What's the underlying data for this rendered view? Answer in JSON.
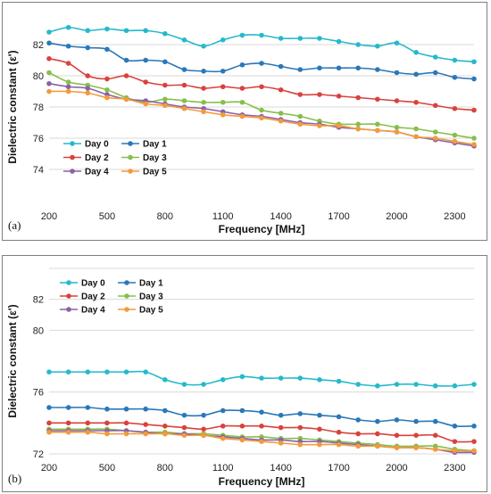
{
  "colors": {
    "Day 0": "#25b9cc",
    "Day 1": "#2a78b8",
    "Day 2": "#d9423c",
    "Day 3": "#86bf4a",
    "Day 4": "#8a61a8",
    "Day 5": "#f39a3a"
  },
  "chart_data": [
    {
      "type": "line",
      "panel_label": "(a)",
      "xlabel": "Frequency [MHz]",
      "ylabel": "Dielectric constant (ε')",
      "xlim": [
        200,
        2400
      ],
      "ylim": [
        72,
        84
      ],
      "xticks": [
        200,
        500,
        800,
        1100,
        1400,
        1700,
        2000,
        2300
      ],
      "yticks": [
        74,
        76,
        78,
        80,
        82
      ],
      "grid": "horizontal",
      "legend_position": "bottom-left",
      "x": [
        200,
        300,
        400,
        500,
        600,
        700,
        800,
        900,
        1000,
        1100,
        1200,
        1300,
        1400,
        1500,
        1600,
        1700,
        1800,
        1900,
        2000,
        2100,
        2200,
        2300,
        2400
      ],
      "series": [
        {
          "name": "Day 0",
          "values": [
            82.8,
            83.1,
            82.9,
            83.0,
            82.9,
            82.9,
            82.7,
            82.3,
            81.9,
            82.3,
            82.6,
            82.6,
            82.4,
            82.4,
            82.4,
            82.2,
            82.0,
            81.9,
            82.1,
            81.5,
            81.2,
            81.0,
            80.9
          ]
        },
        {
          "name": "Day 1",
          "values": [
            82.1,
            81.9,
            81.8,
            81.7,
            81.0,
            81.0,
            80.9,
            80.4,
            80.3,
            80.3,
            80.7,
            80.8,
            80.6,
            80.4,
            80.5,
            80.5,
            80.5,
            80.4,
            80.2,
            80.1,
            80.2,
            79.9,
            79.8
          ]
        },
        {
          "name": "Day 2",
          "values": [
            81.1,
            80.8,
            80.0,
            79.8,
            80.0,
            79.6,
            79.4,
            79.4,
            79.2,
            79.3,
            79.2,
            79.3,
            79.1,
            78.8,
            78.8,
            78.7,
            78.6,
            78.5,
            78.4,
            78.3,
            78.1,
            77.9,
            77.8
          ]
        },
        {
          "name": "Day 3",
          "values": [
            80.2,
            79.6,
            79.4,
            79.1,
            78.6,
            78.3,
            78.5,
            78.4,
            78.3,
            78.3,
            78.3,
            77.8,
            77.6,
            77.4,
            77.1,
            76.9,
            76.9,
            76.9,
            76.7,
            76.6,
            76.4,
            76.2,
            76.0
          ]
        },
        {
          "name": "Day 4",
          "values": [
            79.5,
            79.3,
            79.2,
            78.8,
            78.5,
            78.4,
            78.2,
            78.0,
            77.9,
            77.7,
            77.5,
            77.4,
            77.2,
            77.0,
            76.9,
            76.7,
            76.6,
            76.5,
            76.4,
            76.1,
            75.9,
            75.7,
            75.5
          ]
        },
        {
          "name": "Day 5",
          "values": [
            79.0,
            79.0,
            78.9,
            78.6,
            78.5,
            78.2,
            78.1,
            77.9,
            77.7,
            77.5,
            77.4,
            77.3,
            77.1,
            76.9,
            76.8,
            76.8,
            76.6,
            76.5,
            76.4,
            76.1,
            76.0,
            75.8,
            75.6
          ]
        }
      ]
    },
    {
      "type": "line",
      "panel_label": "(b)",
      "xlabel": "Frequency [MHz]",
      "ylabel": "Dielectric constant (ε')",
      "xlim": [
        200,
        2400
      ],
      "ylim": [
        72,
        84
      ],
      "xticks": [
        200,
        500,
        800,
        1100,
        1400,
        1700,
        2000,
        2300
      ],
      "yticks": [
        72,
        76,
        80,
        82,
        84
      ],
      "ytick_labels": [
        "72",
        "76",
        "80",
        "82",
        ""
      ],
      "grid": "horizontal",
      "legend_position": "top-left",
      "x": [
        200,
        300,
        400,
        500,
        600,
        700,
        800,
        900,
        1000,
        1100,
        1200,
        1300,
        1400,
        1500,
        1600,
        1700,
        1800,
        1900,
        2000,
        2100,
        2200,
        2300,
        2400
      ],
      "series": [
        {
          "name": "Day 0",
          "values": [
            77.3,
            77.3,
            77.3,
            77.3,
            77.3,
            77.3,
            76.8,
            76.5,
            76.5,
            76.8,
            77.0,
            76.9,
            76.9,
            76.9,
            76.8,
            76.7,
            76.5,
            76.4,
            76.5,
            76.5,
            76.4,
            76.4,
            76.5
          ]
        },
        {
          "name": "Day 1",
          "values": [
            75.0,
            75.0,
            75.0,
            74.9,
            74.9,
            74.9,
            74.8,
            74.5,
            74.5,
            74.8,
            74.8,
            74.7,
            74.5,
            74.6,
            74.5,
            74.4,
            74.2,
            74.1,
            74.2,
            74.1,
            74.1,
            73.8,
            73.8
          ]
        },
        {
          "name": "Day 2",
          "values": [
            74.0,
            74.0,
            74.0,
            74.0,
            74.0,
            73.9,
            73.8,
            73.7,
            73.6,
            73.8,
            73.8,
            73.8,
            73.7,
            73.7,
            73.6,
            73.4,
            73.3,
            73.3,
            73.2,
            73.2,
            73.2,
            72.8,
            72.8
          ]
        },
        {
          "name": "Day 3",
          "values": [
            73.6,
            73.6,
            73.6,
            73.6,
            73.5,
            73.4,
            73.4,
            73.3,
            73.3,
            73.2,
            73.1,
            73.1,
            73.0,
            73.0,
            72.9,
            72.8,
            72.7,
            72.6,
            72.5,
            72.5,
            72.5,
            72.3,
            72.2
          ]
        },
        {
          "name": "Day 4",
          "values": [
            73.5,
            73.5,
            73.5,
            73.5,
            73.5,
            73.4,
            73.3,
            73.3,
            73.2,
            73.1,
            73.0,
            72.9,
            72.9,
            72.8,
            72.8,
            72.7,
            72.6,
            72.5,
            72.4,
            72.4,
            72.3,
            72.1,
            72.1
          ]
        },
        {
          "name": "Day 5",
          "values": [
            73.4,
            73.4,
            73.4,
            73.3,
            73.3,
            73.3,
            73.3,
            73.2,
            73.2,
            73.0,
            72.9,
            72.8,
            72.7,
            72.6,
            72.6,
            72.6,
            72.5,
            72.5,
            72.4,
            72.4,
            72.3,
            72.2,
            72.2
          ]
        }
      ]
    }
  ]
}
